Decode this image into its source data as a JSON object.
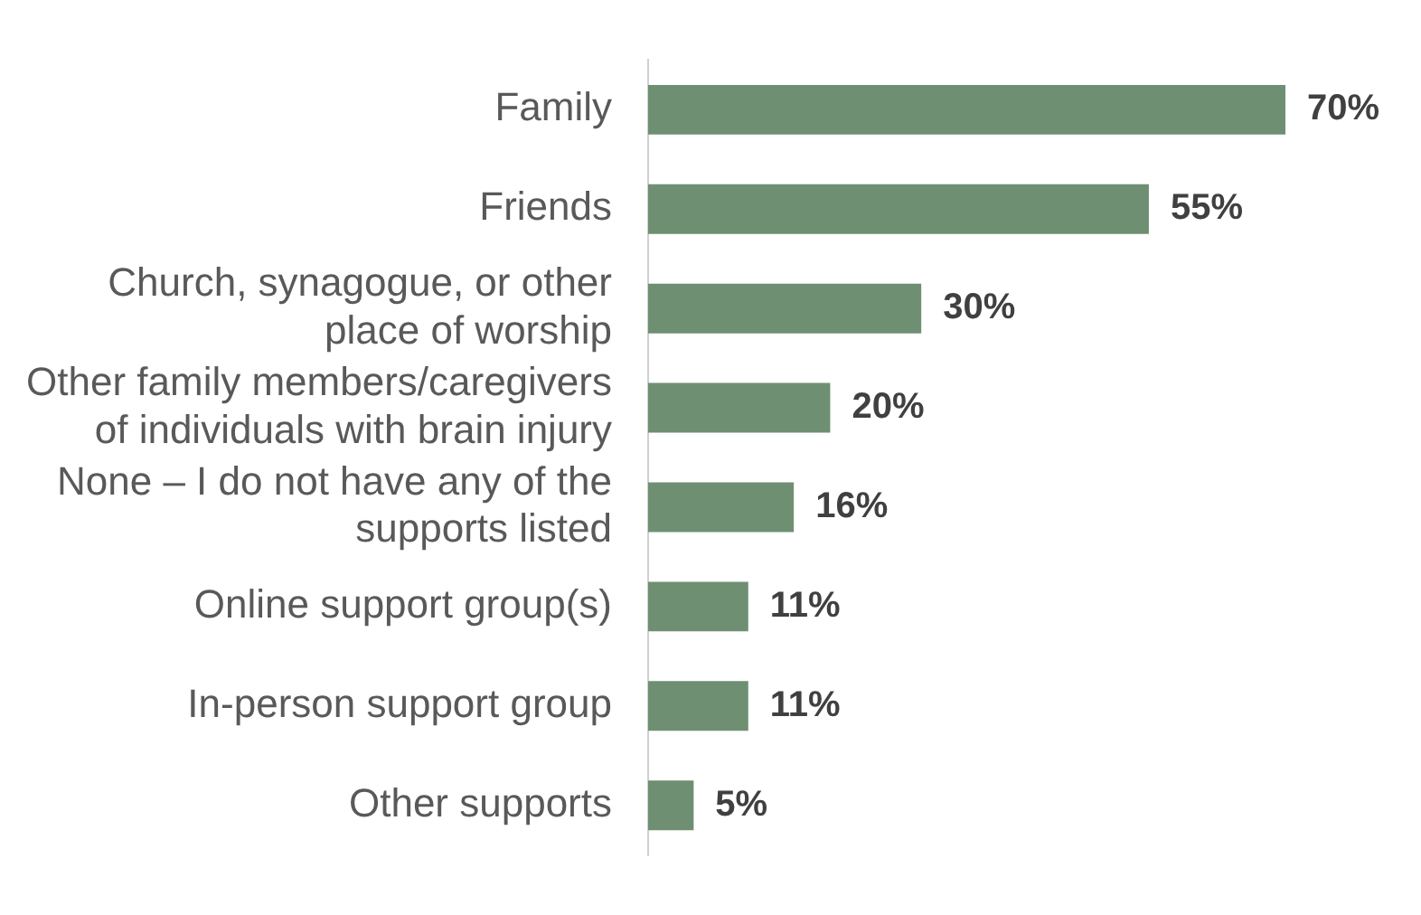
{
  "chart_data": {
    "type": "bar",
    "orientation": "horizontal",
    "categories": [
      "Family",
      "Friends",
      "Church, synagogue, or other\nplace of worship",
      "Other family members/caregivers\nof individuals with brain injury",
      "None – I do not have any of the\nsupports listed",
      "Online support group(s)",
      "In-person support group",
      "Other supports"
    ],
    "values": [
      70,
      55,
      30,
      20,
      16,
      11,
      11,
      5
    ],
    "color": "#6f8f72",
    "data_labels": true,
    "value_labels": [
      "70%",
      "55%",
      "30%",
      "20%",
      "16%",
      "11%",
      "11%",
      "5%"
    ],
    "legend": false,
    "tick_labels": "y"
  }
}
